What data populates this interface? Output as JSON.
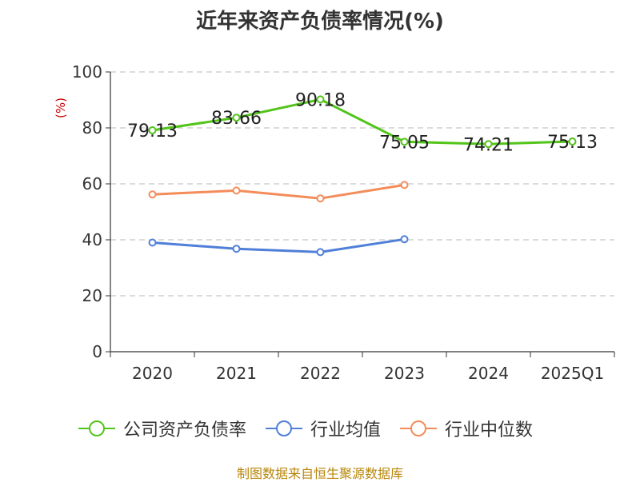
{
  "title": "近年来资产负债率情况(%)",
  "source": "制图数据来自恒生聚源数据库",
  "chart_data": {
    "type": "line",
    "title": "近年来资产负债率情况(%)",
    "xlabel": "",
    "ylabel": "(%)",
    "categories": [
      "2020",
      "2021",
      "2022",
      "2023",
      "2024",
      "2025Q1"
    ],
    "yticks": [
      "0",
      "20",
      "40",
      "60",
      "80",
      "100"
    ],
    "ylim": [
      0,
      100
    ],
    "grid": true,
    "legend_position": "bottom",
    "series": [
      {
        "name": "公司资产负债率",
        "color": "#52c41a",
        "values": [
          79.13,
          83.66,
          90.18,
          75.05,
          74.21,
          75.13
        ],
        "labels": [
          "79.13",
          "83.66",
          "90.18",
          "75.05",
          "74.21",
          "75.13"
        ]
      },
      {
        "name": "行业均值",
        "color": "#4f7fd8",
        "values": [
          39.0,
          36.8,
          35.6,
          40.2,
          null,
          null
        ]
      },
      {
        "name": "行业中位数",
        "color": "#f48c5a",
        "values": [
          56.2,
          57.6,
          54.8,
          59.6,
          null,
          null
        ]
      }
    ]
  }
}
